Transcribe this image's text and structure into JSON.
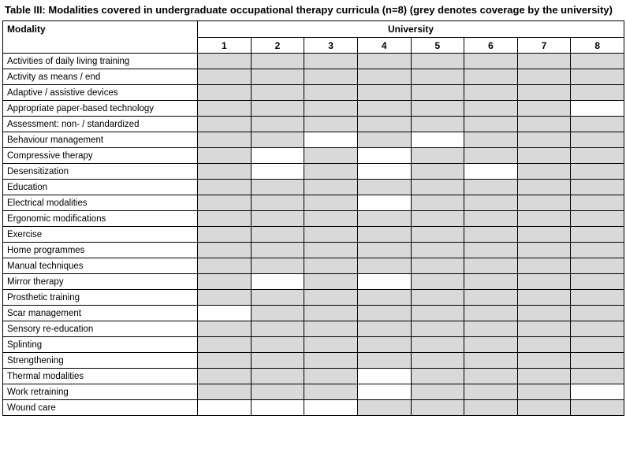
{
  "caption": "Table III: Modalities covered in undergraduate occupational therapy curricula (n=8) (grey denotes coverage by the university)",
  "colors": {
    "covered": "#d9d9d9",
    "not_covered": "#ffffff",
    "border": "#000000"
  },
  "table": {
    "modality_header": "Modality",
    "university_header": "University",
    "columns": [
      "1",
      "2",
      "3",
      "4",
      "5",
      "6",
      "7",
      "8"
    ],
    "rows": [
      {
        "label": "Activities of daily living training",
        "coverage": [
          1,
          1,
          1,
          1,
          1,
          1,
          1,
          1
        ]
      },
      {
        "label": "Activity as means / end",
        "coverage": [
          1,
          1,
          1,
          1,
          1,
          1,
          1,
          1
        ]
      },
      {
        "label": "Adaptive / assistive devices",
        "coverage": [
          1,
          1,
          1,
          1,
          1,
          1,
          1,
          1
        ]
      },
      {
        "label": "Appropriate paper-based technology",
        "coverage": [
          1,
          1,
          1,
          1,
          1,
          1,
          1,
          0
        ]
      },
      {
        "label": "Assessment: non- / standardized",
        "coverage": [
          1,
          1,
          1,
          1,
          1,
          1,
          1,
          1
        ]
      },
      {
        "label": "Behaviour management",
        "coverage": [
          1,
          1,
          0,
          1,
          0,
          1,
          1,
          1
        ]
      },
      {
        "label": "Compressive therapy",
        "coverage": [
          1,
          0,
          1,
          0,
          1,
          1,
          1,
          1
        ]
      },
      {
        "label": "Desensitization",
        "coverage": [
          1,
          0,
          1,
          0,
          1,
          0,
          1,
          1
        ]
      },
      {
        "label": "Education",
        "coverage": [
          1,
          1,
          1,
          1,
          1,
          1,
          1,
          1
        ]
      },
      {
        "label": "Electrical modalities",
        "coverage": [
          1,
          1,
          1,
          0,
          1,
          1,
          1,
          1
        ]
      },
      {
        "label": "Ergonomic modifications",
        "coverage": [
          1,
          1,
          1,
          1,
          1,
          1,
          1,
          1
        ]
      },
      {
        "label": "Exercise",
        "coverage": [
          1,
          1,
          1,
          1,
          1,
          1,
          1,
          1
        ]
      },
      {
        "label": "Home programmes",
        "coverage": [
          1,
          1,
          1,
          1,
          1,
          1,
          1,
          1
        ]
      },
      {
        "label": "Manual techniques",
        "coverage": [
          1,
          1,
          1,
          1,
          1,
          1,
          1,
          1
        ]
      },
      {
        "label": "Mirror therapy",
        "coverage": [
          1,
          0,
          1,
          0,
          1,
          1,
          1,
          1
        ]
      },
      {
        "label": "Prosthetic training",
        "coverage": [
          1,
          1,
          1,
          1,
          1,
          1,
          1,
          1
        ]
      },
      {
        "label": "Scar management",
        "coverage": [
          0,
          1,
          1,
          1,
          1,
          1,
          1,
          1
        ]
      },
      {
        "label": "Sensory re-education",
        "coverage": [
          1,
          1,
          1,
          1,
          1,
          1,
          1,
          1
        ]
      },
      {
        "label": "Splinting",
        "coverage": [
          1,
          1,
          1,
          1,
          1,
          1,
          1,
          1
        ]
      },
      {
        "label": "Strengthening",
        "coverage": [
          1,
          1,
          1,
          1,
          1,
          1,
          1,
          1
        ]
      },
      {
        "label": "Thermal modalities",
        "coverage": [
          1,
          1,
          1,
          0,
          1,
          1,
          1,
          1
        ]
      },
      {
        "label": "Work retraining",
        "coverage": [
          1,
          1,
          1,
          0,
          1,
          1,
          1,
          0
        ]
      },
      {
        "label": "Wound care",
        "coverage": [
          0,
          0,
          0,
          1,
          1,
          1,
          1,
          1
        ]
      }
    ]
  }
}
